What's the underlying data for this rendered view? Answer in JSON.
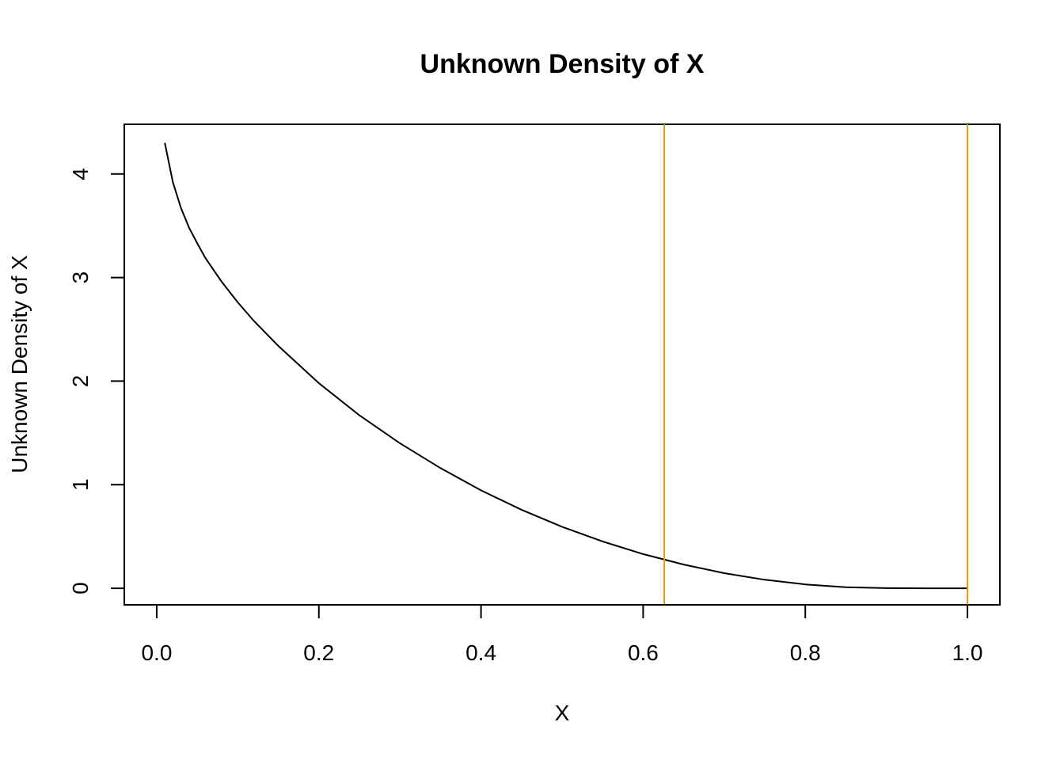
{
  "chart_data": {
    "type": "line",
    "title": "Unknown Density of X",
    "xlabel": "X",
    "ylabel": "Unknown Density of X",
    "xlim": [
      -0.04,
      1.04
    ],
    "ylim": [
      -0.16,
      4.48
    ],
    "x_ticks": [
      0.0,
      0.2,
      0.4,
      0.6,
      0.8,
      1.0
    ],
    "x_tick_labels": [
      "0.0",
      "0.2",
      "0.4",
      "0.6",
      "0.8",
      "1.0"
    ],
    "y_ticks": [
      0,
      1,
      2,
      3,
      4
    ],
    "y_tick_labels": [
      "0",
      "1",
      "2",
      "3",
      "4"
    ],
    "grid": false,
    "series": [
      {
        "color": "#000000",
        "x": [
          0.01,
          0.02,
          0.03,
          0.04,
          0.05,
          0.06,
          0.08,
          0.1,
          0.12,
          0.15,
          0.2,
          0.25,
          0.3,
          0.35,
          0.4,
          0.45,
          0.5,
          0.55,
          0.6,
          0.65,
          0.7,
          0.75,
          0.8,
          0.85,
          0.9,
          0.95,
          1.0
        ],
        "y": [
          4.3,
          3.92,
          3.67,
          3.48,
          3.33,
          3.19,
          2.96,
          2.76,
          2.58,
          2.34,
          1.98,
          1.67,
          1.4,
          1.16,
          0.945,
          0.758,
          0.594,
          0.452,
          0.33,
          0.229,
          0.146,
          0.082,
          0.037,
          0.01,
          0.0012,
          0.0,
          0.0
        ]
      }
    ],
    "vlines": [
      {
        "x": 0.626,
        "color": "#E69F00"
      },
      {
        "x": 1.0,
        "color": "#E69F00"
      }
    ]
  }
}
